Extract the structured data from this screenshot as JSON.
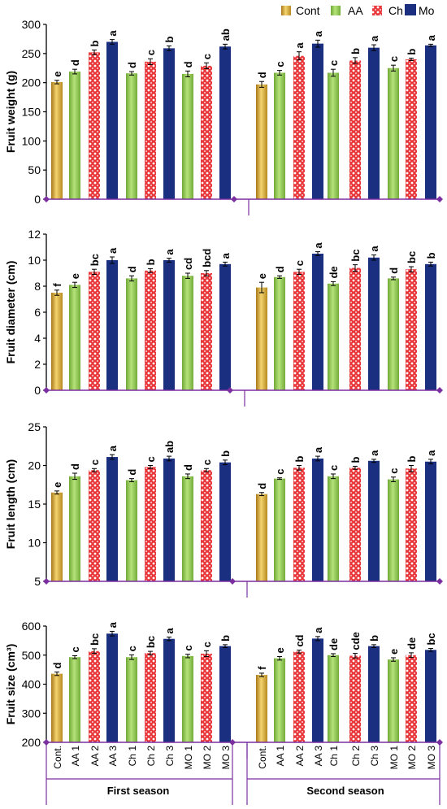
{
  "legend": [
    {
      "label": "Cont",
      "key": "cont"
    },
    {
      "label": "AA",
      "key": "aa"
    },
    {
      "label": "Ch",
      "key": "ch"
    },
    {
      "label": "Mo",
      "key": "mo"
    }
  ],
  "colors": {
    "cont": "#d4a52a",
    "aa": "#8cc63f",
    "ch": "#e8383b",
    "mo": "#1a2f80",
    "axis_purple": "#7b2fa0"
  },
  "x_category_labels": [
    "Cont.",
    "AA 1",
    "AA 2",
    "AA 3",
    "Ch 1",
    "Ch 2",
    "Ch 3",
    "MO 1",
    "MO 2",
    "MO 3"
  ],
  "season_labels": [
    "First season",
    "Second season"
  ],
  "chart_data": [
    {
      "type": "bar",
      "ylabel": "Fruit weight (g)",
      "ylim": [
        0,
        300
      ],
      "yticks": [
        0,
        50,
        100,
        150,
        200,
        250,
        300
      ],
      "categories": [
        "Cont.",
        "AA 1",
        "AA 2",
        "AA 3",
        "Ch 1",
        "Ch 2",
        "Ch 3",
        "MO 1",
        "MO 2",
        "MO 3"
      ],
      "series": [
        {
          "season": "First season",
          "values": [
            201,
            219,
            252,
            270,
            216,
            236,
            259,
            215,
            229,
            262
          ],
          "errors": [
            3,
            4,
            4,
            4,
            3,
            5,
            4,
            5,
            5,
            4
          ],
          "letters": [
            "e",
            "d",
            "b",
            "a",
            "d",
            "c",
            "b",
            "d",
            "c",
            "ab"
          ]
        },
        {
          "season": "Second season",
          "values": [
            197,
            217,
            246,
            267,
            217,
            238,
            260,
            225,
            240,
            264
          ],
          "errors": [
            5,
            4,
            7,
            6,
            6,
            5,
            5,
            5,
            2,
            2
          ],
          "letters": [
            "d",
            "c",
            "a",
            "a",
            "c",
            "b",
            "a",
            "c",
            "b",
            "a"
          ]
        }
      ]
    },
    {
      "type": "bar",
      "ylabel": "Fruit diameter (cm)",
      "ylim": [
        0,
        12
      ],
      "yticks": [
        0,
        2,
        4,
        6,
        8,
        10,
        12
      ],
      "categories": [
        "Cont.",
        "AA 1",
        "AA 2",
        "AA 3",
        "Ch 1",
        "Ch 2",
        "Ch 3",
        "MO 1",
        "MO 2",
        "MO 3"
      ],
      "series": [
        {
          "season": "First season",
          "values": [
            7.5,
            8.1,
            9.1,
            10.0,
            8.6,
            9.2,
            10.0,
            8.8,
            9.0,
            9.7
          ],
          "errors": [
            0.2,
            0.2,
            0.2,
            0.25,
            0.2,
            0.15,
            0.15,
            0.2,
            0.2,
            0.15
          ],
          "letters": [
            "f",
            "e",
            "bc",
            "a",
            "d",
            "b",
            "a",
            "cd",
            "bcd",
            "a"
          ]
        },
        {
          "season": "Second season",
          "values": [
            7.9,
            8.7,
            9.1,
            10.5,
            8.2,
            9.4,
            10.2,
            8.6,
            9.3,
            9.7
          ],
          "errors": [
            0.4,
            0.1,
            0.2,
            0.15,
            0.15,
            0.25,
            0.2,
            0.1,
            0.2,
            0.15
          ],
          "letters": [
            "e",
            "d",
            "c",
            "a",
            "de",
            "bc",
            "a",
            "d",
            "bc",
            "b"
          ]
        }
      ]
    },
    {
      "type": "bar",
      "ylabel": "Fruit length (cm)",
      "ylim": [
        5,
        25
      ],
      "yticks": [
        5,
        10,
        15,
        20,
        25
      ],
      "categories": [
        "Cont.",
        "AA 1",
        "AA 2",
        "AA 3",
        "Ch 1",
        "Ch 2",
        "Ch 3",
        "MO 1",
        "MO 2",
        "MO 3"
      ],
      "series": [
        {
          "season": "First season",
          "values": [
            16.5,
            18.6,
            19.4,
            21.1,
            18.1,
            19.8,
            20.9,
            18.6,
            19.4,
            20.4
          ],
          "errors": [
            0.2,
            0.4,
            0.2,
            0.3,
            0.2,
            0.2,
            0.3,
            0.3,
            0.2,
            0.3
          ],
          "letters": [
            "e",
            "d",
            "c",
            "a",
            "d",
            "c",
            "ab",
            "d",
            "c",
            "b"
          ]
        },
        {
          "season": "Second season",
          "values": [
            16.3,
            18.3,
            19.7,
            20.9,
            18.6,
            19.7,
            20.6,
            18.2,
            19.6,
            20.5
          ],
          "errors": [
            0.2,
            0.1,
            0.3,
            0.3,
            0.3,
            0.2,
            0.2,
            0.3,
            0.4,
            0.3
          ],
          "letters": [
            "d",
            "c",
            "b",
            "a",
            "c",
            "b",
            "a",
            "c",
            "b",
            "a"
          ]
        }
      ]
    },
    {
      "type": "bar",
      "ylabel": "Fruit size (cm³)",
      "ylim": [
        200,
        600
      ],
      "yticks": [
        200,
        300,
        400,
        500,
        600
      ],
      "categories": [
        "Cont.",
        "AA 1",
        "AA 2",
        "AA 3",
        "Ch 1",
        "Ch 2",
        "Ch 3",
        "MO 1",
        "MO 2",
        "MO 3"
      ],
      "series": [
        {
          "season": "First season",
          "values": [
            436,
            493,
            514,
            574,
            493,
            507,
            556,
            497,
            505,
            531
          ],
          "errors": [
            6,
            5,
            8,
            8,
            8,
            6,
            6,
            6,
            10,
            5
          ],
          "letters": [
            "d",
            "c",
            "bc",
            "a",
            "c",
            "bc",
            "a",
            "c",
            "c",
            "b"
          ]
        },
        {
          "season": "Second season",
          "values": [
            432,
            489,
            512,
            557,
            500,
            498,
            531,
            485,
            500,
            518
          ],
          "errors": [
            6,
            6,
            5,
            7,
            5,
            8,
            5,
            6,
            8,
            5
          ],
          "letters": [
            "f",
            "e",
            "cd",
            "a",
            "de",
            "cde",
            "b",
            "e",
            "de",
            "bc"
          ]
        }
      ]
    }
  ]
}
